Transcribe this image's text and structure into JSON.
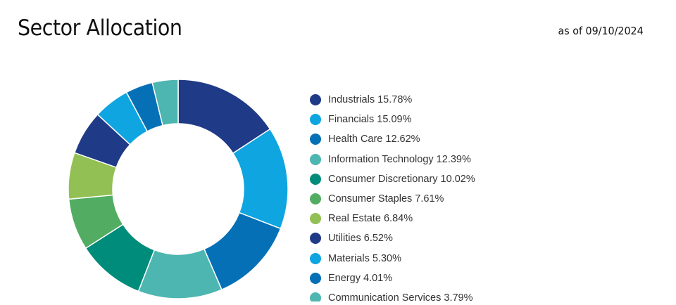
{
  "header": {
    "title": "Sector Allocation",
    "as_of": "as of 09/10/2024"
  },
  "chart_data": {
    "type": "pie",
    "variant": "donut",
    "title": "Sector Allocation",
    "unit": "%",
    "legend_position": "right",
    "categories": [
      "Industrials",
      "Financials",
      "Health Care",
      "Information Technology",
      "Consumer Discretionary",
      "Consumer Staples",
      "Real Estate",
      "Utilities",
      "Materials",
      "Energy",
      "Communication Services"
    ],
    "values": [
      15.78,
      15.09,
      12.62,
      12.39,
      10.02,
      7.61,
      6.84,
      6.52,
      5.3,
      4.01,
      3.79
    ],
    "labels": [
      "15.78%",
      "15.09%",
      "12.62%",
      "12.39%",
      "10.02%",
      "7.61%",
      "6.84%",
      "6.52%",
      "5.30%",
      "4.01%",
      "3.79%"
    ],
    "colors": [
      "#1f3a87",
      "#0ea5e0",
      "#0570b5",
      "#4db6b0",
      "#008c7a",
      "#52ad62",
      "#93c054",
      "#1f3a87",
      "#0ea5e0",
      "#0570b5",
      "#4db6b0"
    ]
  }
}
